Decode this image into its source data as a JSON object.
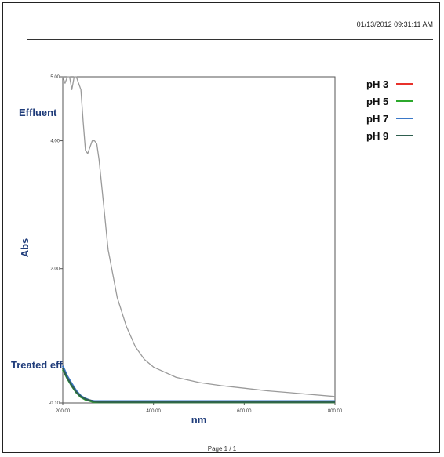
{
  "header": {
    "timestamp": "01/13/2012  09:31:11 AM"
  },
  "footer": {
    "page": "Page 1 / 1"
  },
  "annotations": {
    "effluent": "Effluent",
    "treated": "Treated eff"
  },
  "legend": [
    {
      "name": "pH 3",
      "color": "#e8312b"
    },
    {
      "name": "pH 5",
      "color": "#2ca82c"
    },
    {
      "name": "pH 7",
      "color": "#3a78c8"
    },
    {
      "name": "pH 9",
      "color": "#2f5f4f"
    }
  ],
  "chart_data": {
    "type": "line",
    "xlabel": "nm",
    "ylabel": "Abs",
    "xlim": [
      200,
      800
    ],
    "ylim": [
      -0.1,
      5.0
    ],
    "x_ticks": [
      "200.00",
      "400.00",
      "600.00",
      "800.00"
    ],
    "y_ticks": [
      "-0.10",
      "2.00",
      "4.00",
      "5.00"
    ],
    "series": [
      {
        "color": "#9a9a9a",
        "x": [
          200,
          205,
          210,
          215,
          220,
          225,
          230,
          235,
          240,
          245,
          250,
          255,
          260,
          265,
          270,
          275,
          280,
          290,
          300,
          320,
          340,
          360,
          380,
          400,
          450,
          500,
          550,
          600,
          650,
          700,
          750,
          800
        ],
        "y": [
          5.0,
          4.9,
          5.0,
          5.0,
          4.8,
          5.0,
          5.0,
          4.9,
          4.8,
          4.3,
          3.85,
          3.8,
          3.9,
          4.0,
          4.0,
          3.95,
          3.7,
          3.0,
          2.3,
          1.55,
          1.1,
          0.78,
          0.58,
          0.46,
          0.3,
          0.22,
          0.17,
          0.13,
          0.09,
          0.06,
          0.03,
          0.0
        ]
      },
      {
        "name": "pH 3",
        "color": "#e8312b",
        "x": [
          200,
          210,
          220,
          230,
          240,
          250,
          260,
          270,
          280,
          300,
          400,
          600,
          800
        ],
        "y": [
          0.45,
          0.3,
          0.18,
          0.08,
          0.0,
          -0.04,
          -0.06,
          -0.08,
          -0.08,
          -0.08,
          -0.08,
          -0.08,
          -0.08
        ]
      },
      {
        "name": "pH 5",
        "color": "#2ca82c",
        "x": [
          200,
          210,
          220,
          230,
          240,
          250,
          260,
          270,
          280,
          300,
          400,
          600,
          800
        ],
        "y": [
          0.42,
          0.28,
          0.16,
          0.06,
          -0.01,
          -0.05,
          -0.07,
          -0.09,
          -0.09,
          -0.09,
          -0.09,
          -0.09,
          -0.09
        ]
      },
      {
        "name": "pH 7",
        "color": "#3a78c8",
        "x": [
          200,
          210,
          220,
          230,
          240,
          250,
          260,
          270,
          280,
          300,
          400,
          600,
          800
        ],
        "y": [
          0.48,
          0.32,
          0.2,
          0.09,
          0.01,
          -0.03,
          -0.06,
          -0.07,
          -0.07,
          -0.07,
          -0.07,
          -0.07,
          -0.07
        ]
      },
      {
        "name": "pH 9",
        "color": "#2f5f4f",
        "x": [
          200,
          210,
          220,
          230,
          240,
          250,
          260,
          270,
          280,
          300,
          400,
          600,
          800
        ],
        "y": [
          0.44,
          0.29,
          0.17,
          0.07,
          0.0,
          -0.04,
          -0.06,
          -0.08,
          -0.085,
          -0.085,
          -0.085,
          -0.085,
          -0.085
        ]
      }
    ]
  }
}
